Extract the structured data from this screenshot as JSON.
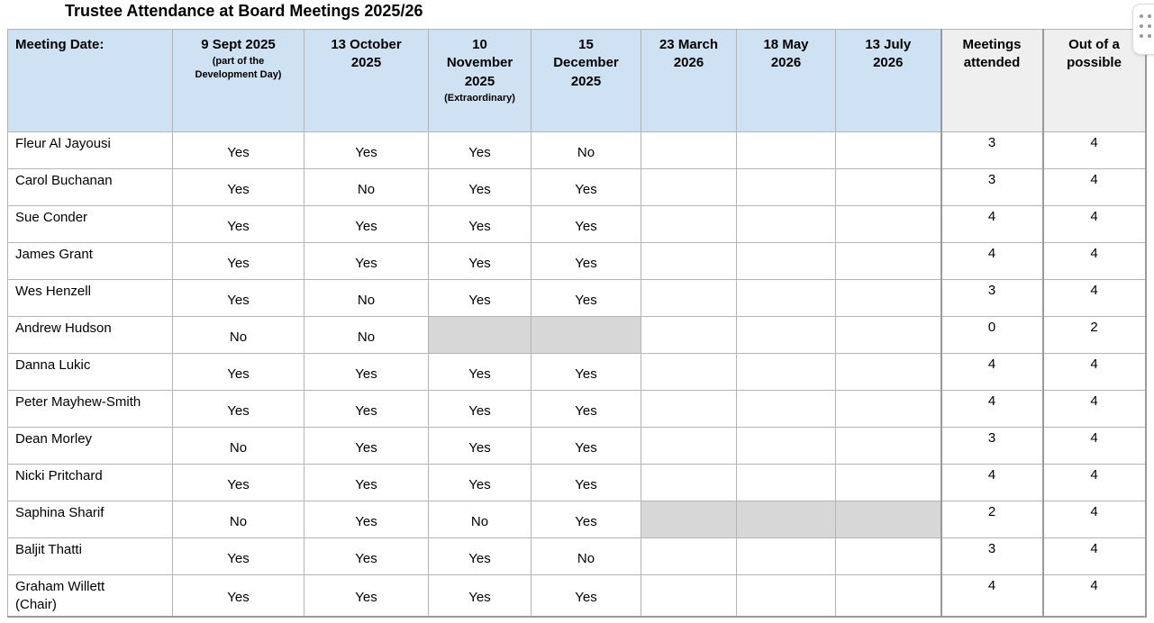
{
  "title": "Trustee Attendance at Board Meetings 2025/26",
  "colors": {
    "header_blue": "#cfe2f3",
    "summary_grey": "#efefef",
    "shaded_cell": "#d7d7d7",
    "border": "#b4b4b4",
    "border_emphasis": "#999999"
  },
  "table": {
    "columns": [
      {
        "label": "Meeting Date:",
        "sub": "",
        "kind": "name"
      },
      {
        "label": "9 Sept 2025",
        "sub": "(part of the\nDevelopment Day)",
        "kind": "date"
      },
      {
        "label": "13 October\n2025",
        "sub": "",
        "kind": "date"
      },
      {
        "label": "10\nNovember\n2025",
        "sub": "(Extraordinary)",
        "kind": "date"
      },
      {
        "label": "15\nDecember\n2025",
        "sub": "",
        "kind": "date"
      },
      {
        "label": "23 March\n2026",
        "sub": "",
        "kind": "date"
      },
      {
        "label": "18 May\n2026",
        "sub": "",
        "kind": "date"
      },
      {
        "label": "13 July\n2026",
        "sub": "",
        "kind": "date"
      },
      {
        "label": "Meetings\nattended",
        "sub": "",
        "kind": "summary"
      },
      {
        "label": "Out of a\npossible",
        "sub": "",
        "kind": "summary"
      }
    ],
    "rows": [
      {
        "name": "Fleur Al Jayousi",
        "attendance": [
          "Yes",
          "Yes",
          "Yes",
          "No",
          "",
          "",
          ""
        ],
        "shaded": [],
        "attended": "3",
        "possible": "4"
      },
      {
        "name": "Carol Buchanan",
        "attendance": [
          "Yes",
          "No",
          "Yes",
          "Yes",
          "",
          "",
          ""
        ],
        "shaded": [],
        "attended": "3",
        "possible": "4"
      },
      {
        "name": "Sue Conder",
        "attendance": [
          "Yes",
          "Yes",
          "Yes",
          "Yes",
          "",
          "",
          ""
        ],
        "shaded": [],
        "attended": "4",
        "possible": "4"
      },
      {
        "name": "James Grant",
        "attendance": [
          "Yes",
          "Yes",
          "Yes",
          "Yes",
          "",
          "",
          ""
        ],
        "shaded": [],
        "attended": "4",
        "possible": "4"
      },
      {
        "name": "Wes Henzell",
        "attendance": [
          "Yes",
          "No",
          "Yes",
          "Yes",
          "",
          "",
          ""
        ],
        "shaded": [],
        "attended": "3",
        "possible": "4"
      },
      {
        "name": "Andrew Hudson",
        "attendance": [
          "No",
          "No",
          "",
          "",
          "",
          "",
          ""
        ],
        "shaded": [
          2,
          3
        ],
        "attended": "0",
        "possible": "2"
      },
      {
        "name": "Danna Lukic",
        "attendance": [
          "Yes",
          "Yes",
          "Yes",
          "Yes",
          "",
          "",
          ""
        ],
        "shaded": [],
        "attended": "4",
        "possible": "4"
      },
      {
        "name": "Peter Mayhew-Smith",
        "attendance": [
          "Yes",
          "Yes",
          "Yes",
          "Yes",
          "",
          "",
          ""
        ],
        "shaded": [],
        "attended": "4",
        "possible": "4"
      },
      {
        "name": "Dean Morley",
        "attendance": [
          "No",
          "Yes",
          "Yes",
          "Yes",
          "",
          "",
          ""
        ],
        "shaded": [],
        "attended": "3",
        "possible": "4"
      },
      {
        "name": "Nicki Pritchard",
        "attendance": [
          "Yes",
          "Yes",
          "Yes",
          "Yes",
          "",
          "",
          ""
        ],
        "shaded": [],
        "attended": "4",
        "possible": "4"
      },
      {
        "name": "Saphina Sharif",
        "attendance": [
          "No",
          "Yes",
          "No",
          "Yes",
          "",
          "",
          ""
        ],
        "shaded": [
          4,
          5,
          6
        ],
        "attended": "2",
        "possible": "4"
      },
      {
        "name": "Baljit Thatti",
        "attendance": [
          "Yes",
          "Yes",
          "Yes",
          "No",
          "",
          "",
          ""
        ],
        "shaded": [],
        "attended": "3",
        "possible": "4"
      },
      {
        "name": "Graham Willett\n(Chair)",
        "attendance": [
          "Yes",
          "Yes",
          "Yes",
          "Yes",
          "",
          "",
          ""
        ],
        "shaded": [],
        "attended": "4",
        "possible": "4"
      }
    ]
  },
  "options_handle": {
    "icon": "drag-dots-icon"
  }
}
